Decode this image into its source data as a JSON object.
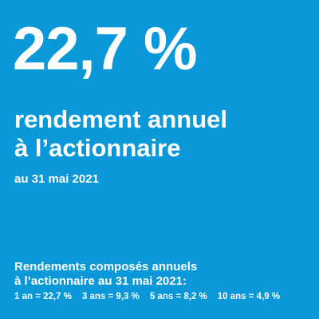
{
  "headline_value": "22,7 %",
  "headline_lines": [
    "rendement annuel",
    "à l’actionnaire"
  ],
  "as_of": "au 31 mai 2021",
  "compound": {
    "title_lines": [
      "Rendements composés annuels",
      "à l’actionnaire au 31 mai 2021:"
    ],
    "items": [
      "1 an = 22,7 %",
      "3 ans = 9,3 %",
      "5 ans = 8,2 %",
      "10 ans = 4,9 %"
    ]
  },
  "colors": {
    "background": "#0a98d8",
    "text": "#ffffff"
  }
}
